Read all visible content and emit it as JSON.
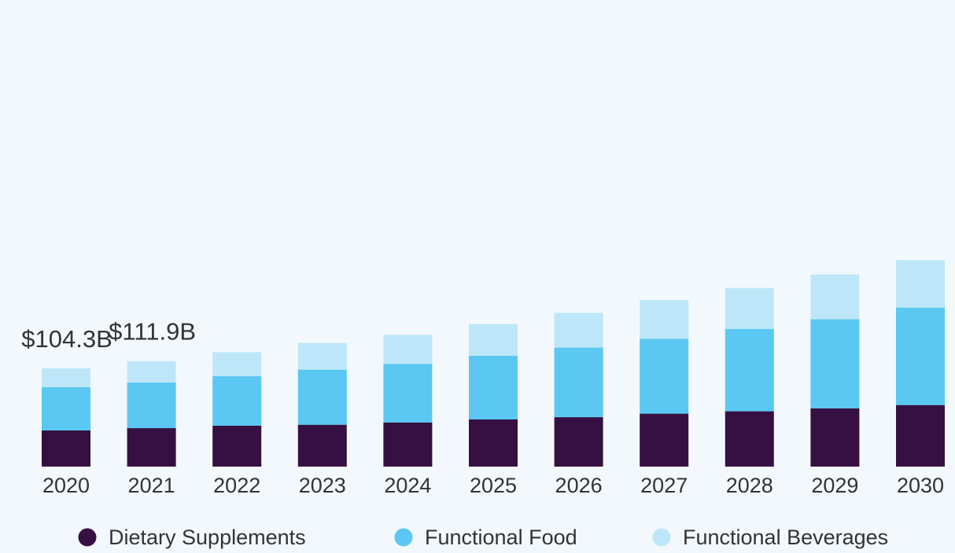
{
  "chart_data": {
    "type": "bar",
    "stacked": true,
    "categories": [
      "2020",
      "2021",
      "2022",
      "2023",
      "2024",
      "2025",
      "2026",
      "2027",
      "2028",
      "2029",
      "2030"
    ],
    "series": [
      {
        "name": "Dietary Supplements",
        "color": "#361042",
        "values": [
          38.4,
          40.8,
          43.4,
          44.4,
          46.8,
          50.0,
          52.4,
          56.2,
          58.7,
          61.8,
          65.3
        ]
      },
      {
        "name": "Functional Food",
        "color": "#5ac8f2",
        "values": [
          45.8,
          48.4,
          52.6,
          58.4,
          62.1,
          67.5,
          73.9,
          79.4,
          87.4,
          94.6,
          103.4
        ]
      },
      {
        "name": "Functional Beverages",
        "color": "#bde7f8",
        "values": [
          20.1,
          22.7,
          25.4,
          28.4,
          30.9,
          33.7,
          36.7,
          41.0,
          43.3,
          47.4,
          50.3
        ]
      }
    ],
    "data_labels": [
      {
        "category": "2020",
        "text": "$104.3B"
      },
      {
        "category": "2021",
        "text": "$111.9B"
      }
    ],
    "ylim": [
      0,
      220
    ],
    "grid": false,
    "legend_position": "bottom"
  }
}
